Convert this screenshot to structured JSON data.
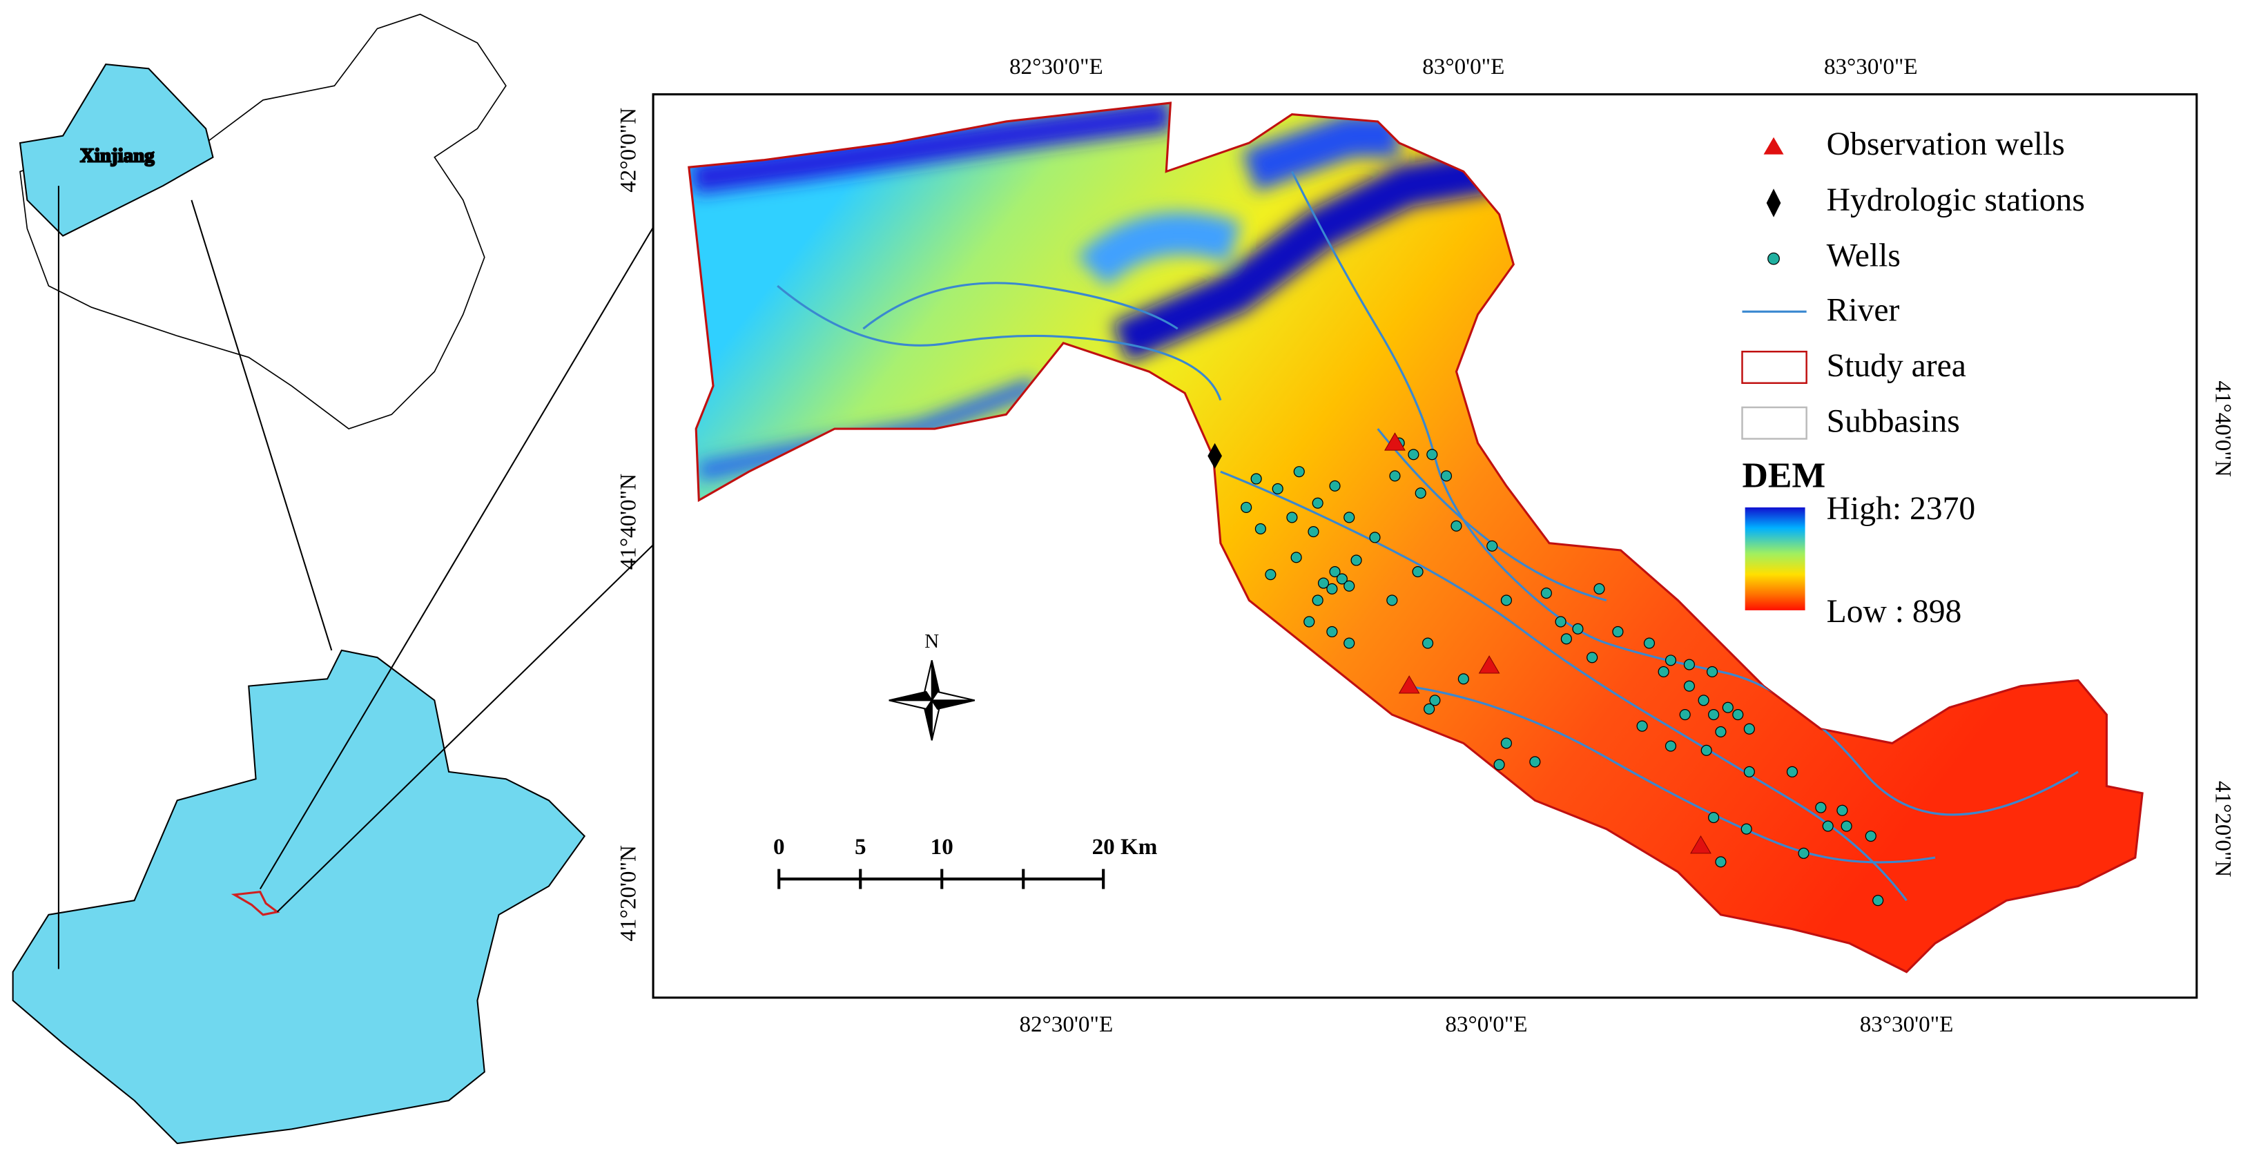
{
  "inset": {
    "label": "Xinjiang"
  },
  "map": {
    "top_ticks": [
      "82°30'0\"E",
      "83°0'0\"E",
      "83°30'0\"E"
    ],
    "bottom_ticks": [
      "82°30'0\"E",
      "83°0'0\"E",
      "83°30'0\"E"
    ],
    "left_ticks": [
      "42°0'0\"N",
      "41°40'0\"N",
      "41°20'0\"N"
    ],
    "right_ticks": [
      "41°40'0\"N",
      "41°20'0\"N"
    ],
    "north_label": "N",
    "scale_bar": [
      "0",
      "5",
      "10",
      "20 Km"
    ]
  },
  "legend": {
    "items": [
      "Observation wells",
      "Hydrologic stations",
      "Wells",
      "River",
      "Study area",
      "Subbasins"
    ],
    "dem_title": "DEM",
    "high": "High: 2370",
    "low": "Low : 898"
  }
}
